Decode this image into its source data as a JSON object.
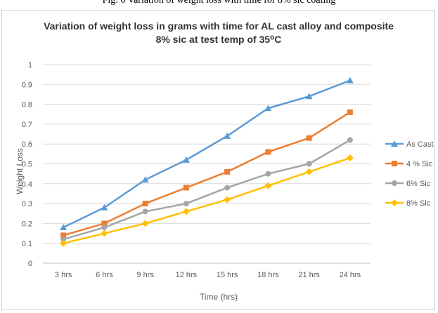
{
  "caption": "Fig. 6 Variation of weight loss with time for 8% sic coating",
  "chart_data": {
    "type": "line",
    "title_line1": "Variation of weight loss in grams with time for AL cast alloy and composite",
    "title_line2": "8% sic at test temp of 35⁰C",
    "xlabel": "Time (hrs)",
    "ylabel": "Weight Loss",
    "categories": [
      "3 hrs",
      "6 hrs",
      "9 hrs",
      "12 hrs",
      "15 hrs",
      "18 hrs",
      "21 hrs",
      "24 hrs"
    ],
    "ylim": [
      0,
      1
    ],
    "yticks": [
      "0",
      "0.1",
      "0.2",
      "0.3",
      "0.4",
      "0.5",
      "0.6",
      "0.7",
      "0.8",
      "0.9",
      "1"
    ],
    "grid": true,
    "legend_position": "right",
    "series": [
      {
        "name": "As Cast",
        "color": "#5b9bd5",
        "marker": "triangle",
        "values": [
          0.18,
          0.28,
          0.42,
          0.52,
          0.64,
          0.78,
          0.84,
          0.92
        ]
      },
      {
        "name": "4 % Sic",
        "color": "#ed7d31",
        "marker": "square",
        "values": [
          0.14,
          0.2,
          0.3,
          0.38,
          0.46,
          0.56,
          0.63,
          0.76
        ]
      },
      {
        "name": "6% Sic",
        "color": "#a5a5a5",
        "marker": "circle",
        "values": [
          0.12,
          0.18,
          0.26,
          0.3,
          0.38,
          0.45,
          0.5,
          0.62
        ]
      },
      {
        "name": "8%  Sic",
        "color": "#ffc000",
        "marker": "diamond",
        "values": [
          0.1,
          0.15,
          0.2,
          0.26,
          0.32,
          0.39,
          0.46,
          0.53
        ]
      }
    ]
  }
}
